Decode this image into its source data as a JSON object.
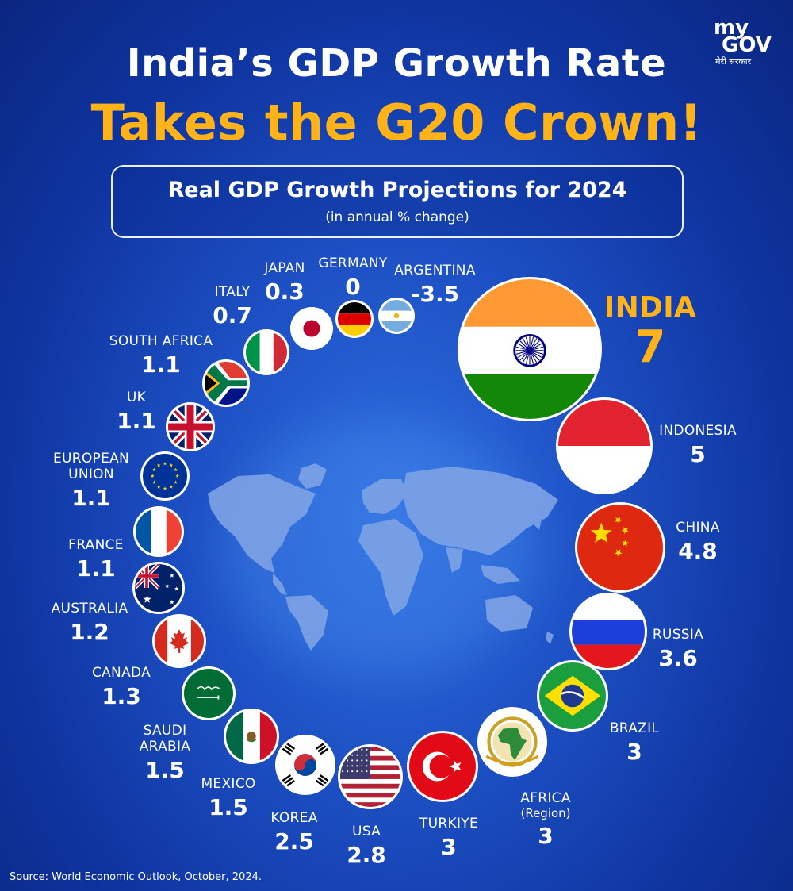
{
  "header": {
    "title_line1": "India’s GDP Growth Rate",
    "title_line2": "Takes the G20 Crown!",
    "logo_my": "my",
    "logo_gov": "GOV",
    "logo_tagline": "मेरी सरकार"
  },
  "subtitle_box": {
    "title": "Real GDP Growth Projections for 2024",
    "unit": "(in annual % change)"
  },
  "source": "Source: World Economic Outlook, October, 2024.",
  "colors": {
    "background": "#1c4fc3",
    "accent_yellow": "#ffb319",
    "text": "#ffffff",
    "map_land": "#7ea3e6"
  },
  "chart_data": {
    "type": "bubble",
    "title": "Real GDP Growth Projections for 2024",
    "unit": "annual % change",
    "series": [
      {
        "name": "INDIA",
        "value": 7,
        "flag": "india-flag-icon"
      },
      {
        "name": "INDONESIA",
        "value": 5,
        "flag": "indonesia-flag-icon"
      },
      {
        "name": "CHINA",
        "value": 4.8,
        "flag": "china-flag-icon"
      },
      {
        "name": "RUSSIA",
        "value": 3.6,
        "flag": "russia-flag-icon"
      },
      {
        "name": "BRAZIL",
        "value": 3,
        "flag": "brazil-flag-icon"
      },
      {
        "name": "AFRICA",
        "sublabel": "(Region)",
        "value": 3,
        "flag": "african-union-emblem-icon"
      },
      {
        "name": "TURKIYE",
        "value": 3,
        "flag": "turkiye-flag-icon"
      },
      {
        "name": "USA",
        "value": 2.8,
        "flag": "usa-flag-icon"
      },
      {
        "name": "KOREA",
        "value": 2.5,
        "flag": "korea-flag-icon"
      },
      {
        "name": "MEXICO",
        "value": 1.5,
        "flag": "mexico-flag-icon"
      },
      {
        "name": "SAUDI ARABIA",
        "value": 1.5,
        "flag": "saudi-arabia-flag-icon"
      },
      {
        "name": "CANADA",
        "value": 1.3,
        "flag": "canada-flag-icon"
      },
      {
        "name": "AUSTRALIA",
        "value": 1.2,
        "flag": "australia-flag-icon"
      },
      {
        "name": "FRANCE",
        "value": 1.1,
        "flag": "france-flag-icon"
      },
      {
        "name": "EUROPEAN UNION",
        "value": 1.1,
        "flag": "eu-flag-icon"
      },
      {
        "name": "UK",
        "value": 1.1,
        "flag": "uk-flag-icon"
      },
      {
        "name": "SOUTH AFRICA",
        "value": 1.1,
        "flag": "south-africa-flag-icon"
      },
      {
        "name": "ITALY",
        "value": 0.7,
        "flag": "italy-flag-icon"
      },
      {
        "name": "JAPAN",
        "value": 0.3,
        "flag": "japan-flag-icon"
      },
      {
        "name": "GERMANY",
        "value": 0,
        "flag": "germany-flag-icon"
      },
      {
        "name": "ARGENTINA",
        "value": -3.5,
        "flag": "argentina-flag-icon"
      }
    ]
  }
}
